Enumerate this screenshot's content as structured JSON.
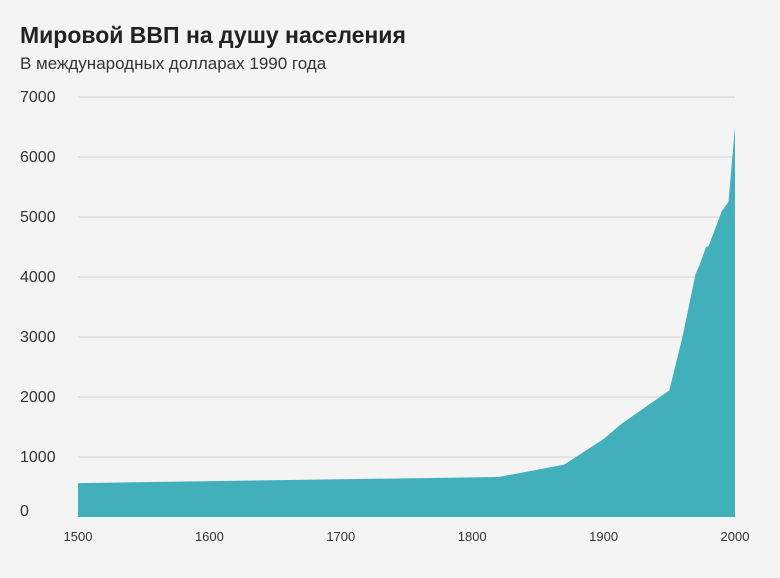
{
  "header": {
    "title": "Мировой ВВП на душу населения",
    "subtitle": "В международных долларах 1990 года"
  },
  "chart_data": {
    "type": "area",
    "title": "Мировой ВВП на душу населения",
    "subtitle": "В международных долларах 1990 года",
    "xlabel": "",
    "ylabel": "",
    "xlim": [
      1500,
      2000
    ],
    "ylim": [
      0,
      7000
    ],
    "x_ticks": [
      1500,
      1600,
      1700,
      1800,
      1900,
      2000
    ],
    "y_ticks": [
      0,
      1000,
      2000,
      3000,
      4000,
      5000,
      6000,
      7000
    ],
    "grid": "horizontal",
    "fill_color": "#42b0bb",
    "series": [
      {
        "x": [
          1500,
          1820,
          1870,
          1900,
          1913,
          1950,
          1960,
          1970,
          1973,
          1978,
          1980,
          1990,
          1995,
          2000
        ],
        "values": [
          565,
          667,
          872,
          1300,
          1543,
          2111,
          3000,
          4050,
          4200,
          4500,
          4520,
          5100,
          5250,
          6500
        ]
      }
    ]
  }
}
